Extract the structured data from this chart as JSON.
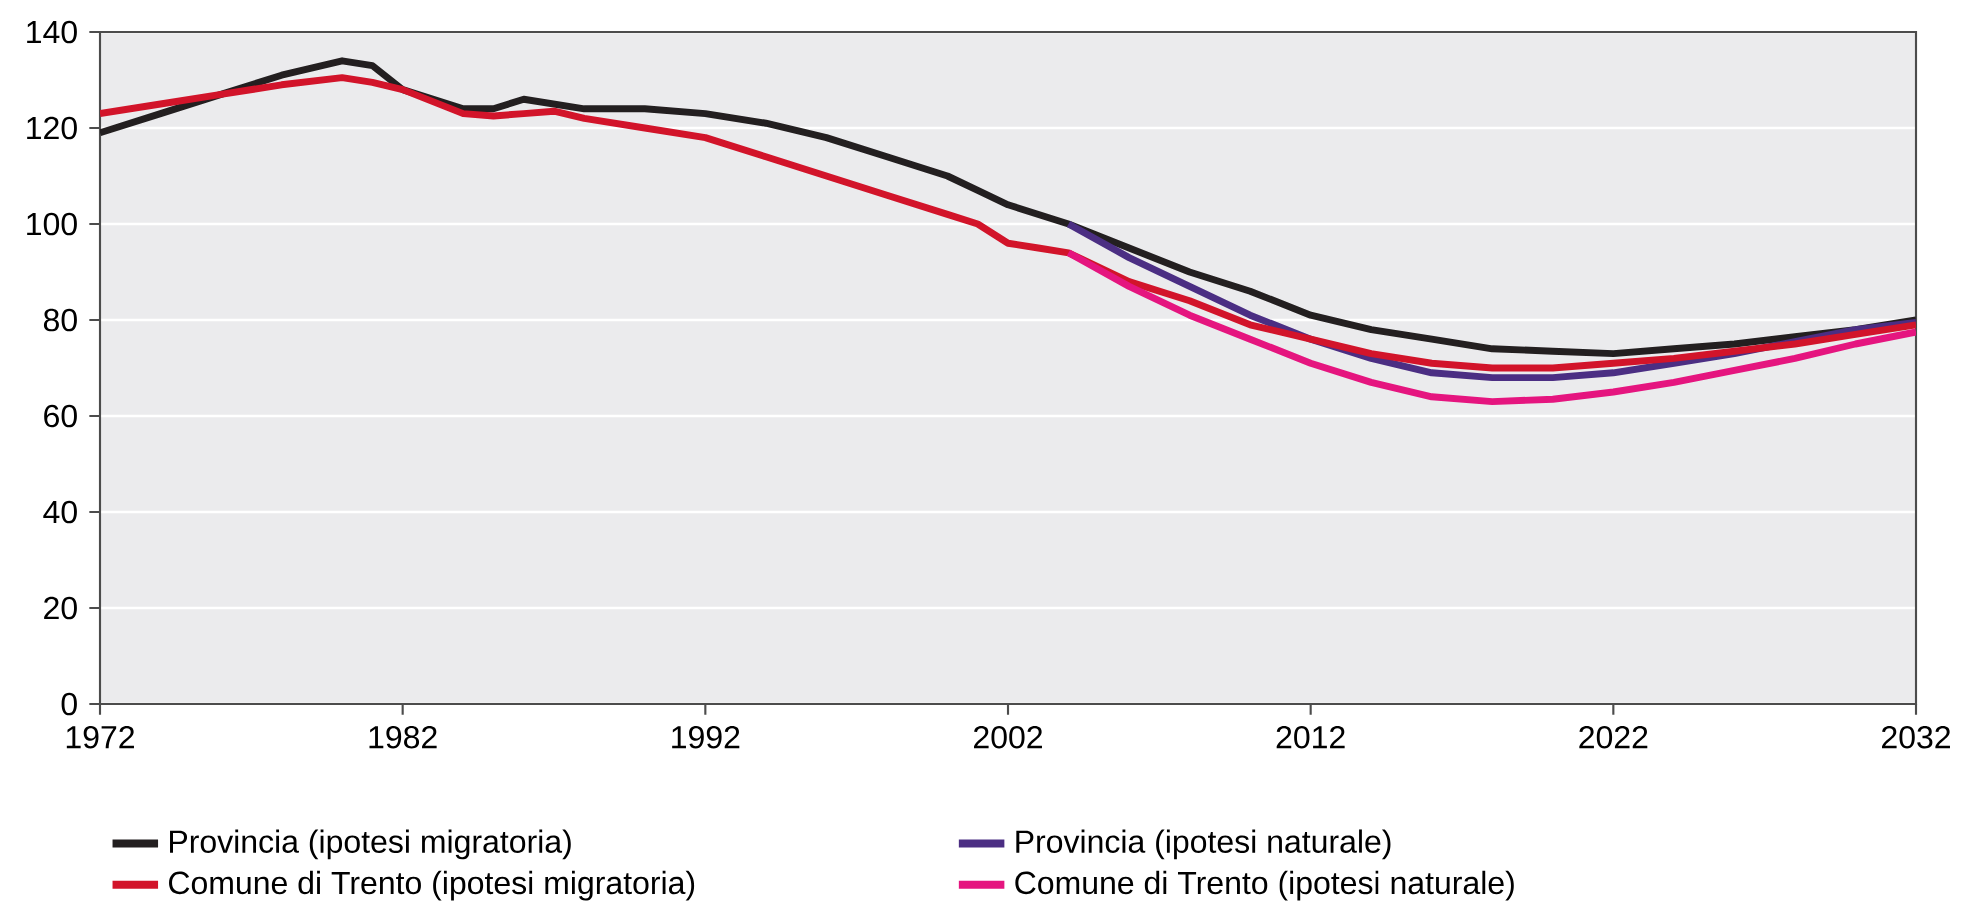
{
  "chart_data": {
    "type": "line",
    "xlim": [
      1972,
      2032
    ],
    "xticks": [
      1972,
      1982,
      1992,
      2002,
      2012,
      2022,
      2032
    ],
    "ylim": [
      0,
      140
    ],
    "yticks": [
      0,
      20,
      40,
      60,
      80,
      100,
      120,
      140
    ],
    "grid": "y",
    "legend": "bottom",
    "marker": "none",
    "line_style": "solid",
    "series": [
      {
        "name": "Provincia (ipotesi migratoria)",
        "color": "#231f20",
        "x": [
          1972,
          1974,
          1976,
          1978,
          1980,
          1981,
          1982,
          1984,
          1985,
          1986,
          1988,
          1990,
          1992,
          1994,
          1996,
          1998,
          2000,
          2001,
          2002,
          2004,
          2006,
          2008,
          2010,
          2012,
          2014,
          2016,
          2018,
          2020,
          2022,
          2024,
          2026,
          2028,
          2030,
          2032
        ],
        "values": [
          119,
          123,
          127,
          131,
          134,
          133,
          128,
          124,
          124,
          126,
          124,
          124,
          123,
          121,
          118,
          114,
          110,
          107,
          104,
          100,
          95,
          90,
          86,
          81,
          78,
          76,
          74,
          73.5,
          73,
          74,
          75,
          76.5,
          78,
          80
        ]
      },
      {
        "name": "Provincia (ipotesi naturale)",
        "color": "#4b2e83",
        "x": [
          2004,
          2006,
          2008,
          2010,
          2012,
          2014,
          2016,
          2018,
          2020,
          2022,
          2024,
          2026,
          2028,
          2030,
          2032
        ],
        "values": [
          100,
          93,
          87,
          81,
          76,
          72,
          69,
          68,
          68,
          69,
          71,
          73,
          75.5,
          78,
          79.5
        ]
      },
      {
        "name": "Comune di Trento (ipotesi migratoria)",
        "color": "#d2142a",
        "x": [
          1972,
          1974,
          1976,
          1978,
          1980,
          1981,
          1982,
          1984,
          1985,
          1986,
          1987,
          1988,
          1990,
          1992,
          1994,
          1996,
          1998,
          2000,
          2001,
          2002,
          2003,
          2004,
          2006,
          2008,
          2010,
          2012,
          2014,
          2016,
          2018,
          2020,
          2022,
          2024,
          2026,
          2028,
          2030,
          2032
        ],
        "values": [
          123,
          125,
          127,
          129,
          130.5,
          129.5,
          128,
          123,
          122.5,
          123,
          123.5,
          122,
          120,
          118,
          114,
          110,
          106,
          102,
          100,
          96,
          95,
          94,
          88,
          84,
          79,
          76,
          73,
          71,
          70,
          70,
          71,
          72,
          73.5,
          75,
          77,
          79
        ]
      },
      {
        "name": "Comune di Trento (ipotesi naturale)",
        "color": "#e5157f",
        "x": [
          2004,
          2006,
          2008,
          2010,
          2012,
          2014,
          2016,
          2018,
          2020,
          2022,
          2024,
          2026,
          2028,
          2030,
          2032
        ],
        "values": [
          94,
          87,
          81,
          76,
          71,
          67,
          64,
          63,
          63.5,
          65,
          67,
          69.5,
          72,
          75,
          77.5
        ]
      }
    ]
  }
}
